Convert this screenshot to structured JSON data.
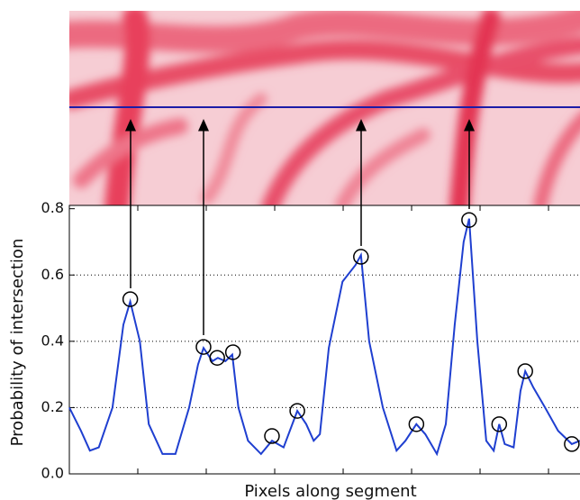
{
  "chart_data": {
    "type": "line",
    "xlabel": "Pixels along segment",
    "ylabel": "Probability of intersection",
    "xlim": [
      0,
      74.6
    ],
    "ylim": [
      0,
      0.81
    ],
    "xticks": [
      10,
      20,
      30,
      40,
      50,
      60,
      70
    ],
    "yticks": [
      {
        "value": 0,
        "label": "0.0"
      },
      0.2,
      0.4,
      0.6,
      0.8
    ],
    "grid": true,
    "series": [
      {
        "color": "#1f3fd0",
        "marker": "none",
        "x": [
          0,
          1.7,
          3.0,
          4.3,
          6.3,
          7.9,
          8.9,
          10.3,
          11.6,
          13.6,
          15.5,
          17.5,
          18.8,
          19.6,
          20.9,
          21.7,
          22.8,
          23.8,
          24.7,
          26.1,
          28.0,
          29.6,
          31.3,
          33.3,
          34.6,
          35.7,
          36.6,
          37.9,
          39.9,
          41.8,
          42.6,
          43.8,
          45.8,
          47.8,
          49.1,
          50.7,
          52.0,
          53.7,
          55.0,
          56.3,
          57.6,
          58.4,
          59.6,
          60.9,
          62.0,
          62.8,
          63.6,
          64.9,
          65.9,
          66.6,
          67.8,
          69.5,
          71.4,
          73.4,
          74.6
        ],
        "values": [
          0.2,
          0.13,
          0.07,
          0.08,
          0.2,
          0.45,
          0.52,
          0.4,
          0.15,
          0.06,
          0.06,
          0.2,
          0.33,
          0.38,
          0.34,
          0.35,
          0.34,
          0.36,
          0.2,
          0.1,
          0.06,
          0.1,
          0.08,
          0.19,
          0.15,
          0.1,
          0.12,
          0.38,
          0.58,
          0.63,
          0.66,
          0.4,
          0.2,
          0.07,
          0.1,
          0.15,
          0.12,
          0.06,
          0.15,
          0.45,
          0.7,
          0.77,
          0.4,
          0.1,
          0.07,
          0.15,
          0.09,
          0.08,
          0.25,
          0.31,
          0.26,
          0.2,
          0.13,
          0.09,
          0.1
        ]
      },
      {
        "color": "#000000",
        "marker": "circle",
        "x": [
          8.9,
          19.6,
          21.6,
          23.9,
          29.6,
          33.3,
          42.6,
          50.7,
          58.4,
          62.8,
          66.6,
          73.4
        ],
        "values": [
          0.527,
          0.383,
          0.35,
          0.367,
          0.114,
          0.19,
          0.655,
          0.15,
          0.766,
          0.15,
          0.31,
          0.09
        ]
      }
    ]
  }
}
